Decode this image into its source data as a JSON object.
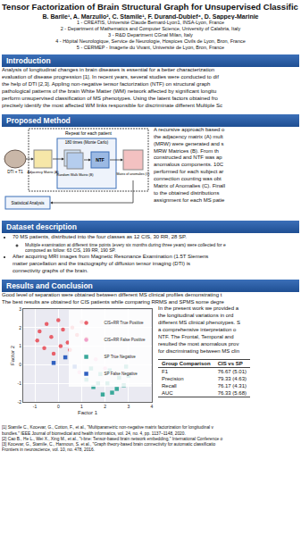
{
  "header": {
    "title": "Tensor Factorization of Brain Structural Graph for Unsupervised Classific",
    "authors": "B. Barile¹, A. Marzullo², C. Stamile¹, F. Durand-Dubief⁴, D. Sappey-Marinie",
    "affiliations": [
      "1 - CREATIS, Université Claude Bernard-Lyon1, INSA-Lyon, France",
      "2 - Department of Mathematics and Computer Science, University of Calabria, Italy",
      "3 - R&D Department CGnal Milan, Italy",
      "4 - Hôpital Neurologique, Service de Neurologie, Hospices Civils de Lyon, Bron, France",
      "5 - CERMEP - Imagerie du Vivant, Université de Lyon, Bron, France"
    ]
  },
  "introduction": {
    "title": "Introduction",
    "lines": [
      "Analysis of longitudinal changes in brain diseases is essential for a better characterization",
      "evaluation of disease progression [1]. In recent years, several studies were conducted to dif",
      "the help of DTI [2,3]. Appling non-negative tensor factorization (NTF) on structural graph",
      "pathological patterns of the brain White Matter (WM) network affected by significant longitu",
      "perform unsupervised classification of MS phenotypes. Using the latent factors obtained fro",
      "precisely identify the most affected WM links responsible for discriminate different Multiple Sc"
    ]
  },
  "proposed_method": {
    "title": "Proposed Method",
    "diagram": {
      "repeat": "Repeat for each patient",
      "monte_carlo": "180 times (Monte Carlo)",
      "input": "DTI + T1",
      "adjacency": "Adjacency Matrix (A)",
      "random_walk": "Random Walk Matrix (B)",
      "ntf": "NTF",
      "anomalies": "Matrix of anomalies (C)",
      "statistics": "Statistical Analysis"
    },
    "lines": [
      "A recursive approach based o",
      "the adjacency matrix (A) mult",
      "(MRW) were generated and s",
      "MRW Matrices (B). From th",
      "constructed and NTF was ap",
      "anomalous components. 10C",
      "performed for each subject ar",
      "connection counting was obt",
      "Matrix of Anomalies (C). Finall",
      "to the obtained distributions",
      "assignment for each MS patie"
    ]
  },
  "dataset": {
    "title": "Dataset description",
    "items": [
      {
        "lines": [
          "70 MS patients, distributed into the four classes as 12 CIS, 30 RR, 28 SP."
        ],
        "sub": [
          {
            "lines": [
              "Multiple examination at different time points (every six months during three years) were collected for e",
              "composed as follow: 63 CIS, 199 RR, 190 SP."
            ]
          }
        ]
      },
      {
        "lines": [
          "After acquiring MRI images from Magnetic Resonance Examination (1.5T Siemens",
          "matter parcellation and the tractography of diffusion tensor imaging (DTI) is",
          "connectivity graphs of the brain."
        ]
      }
    ]
  },
  "results": {
    "title": "Results and Conclusion",
    "lines": [
      "Good level of separation were obtained between different MS clinical profiles demonstrating t",
      "The best results are obtained for CIS patients while comparing RRMS and SPMS some degre"
    ],
    "side_lines": [
      "In the present work we provided a",
      "the longitudinal variations in ord",
      "different MS clinical phenotypes. S",
      "a comprehensive interpretation o",
      "NTF. The Frontal, Temporal and",
      "resulted the most anomalous prov",
      "for discriminating between MS clin"
    ],
    "table": {
      "header": [
        "Group Comparison",
        "CIS vs SP"
      ],
      "rows": [
        [
          "F1",
          "76.67 (5.01)"
        ],
        [
          "Precision",
          "79.33 (4.63)"
        ],
        [
          "Recall",
          "76.17 (4.31)"
        ],
        [
          "AUC",
          "76.33 (5.68)"
        ]
      ]
    }
  },
  "references": [
    "[1] Stamile C., Kocevar, G., Cotton, F., et al., \"Multiparametric non-negative matrix factorization for longitudinal v",
    "bundles.\" IEEE Journal of biomedical and health informatics, vol. 24, no. 4, pp. 1137–1148, 2020.",
    "[2] Cao B., He L., Wei X., Xing M., et al., \"t-bne: Tensor-based brain network embedding,\" International Conference o",
    "[3] Kocevar, G., Stamile, C., Hannoun, S. et al., \"Graph theory-based brain connectivity for automatic classificatio",
    "Frontiers in neuroscience, vol. 10, no. 478, 2016."
  ],
  "chart_data": {
    "type": "scatter",
    "x_label": "Factor 1",
    "y_label": "Factor 2",
    "xlim": [
      -1.5,
      4
    ],
    "xticks": [
      -1,
      0,
      1,
      2,
      3,
      4
    ],
    "ylim": [
      -2,
      3
    ],
    "yticks": [
      -2,
      -1,
      0,
      1,
      2,
      3
    ],
    "grid": true,
    "legend": "upper right",
    "series": [
      {
        "name": "CIS+RR True Positive",
        "color": "#e8606a",
        "marker": "circle",
        "x": [
          -0.8,
          -0.5,
          -0.3,
          0,
          0.2,
          0.4,
          0.6,
          -0.6,
          0.1,
          0.8,
          1.0,
          -0.2,
          0.5,
          1.2,
          -0.9
        ],
        "y": [
          1.8,
          2.2,
          1.5,
          2.4,
          1.9,
          1.2,
          2.0,
          0.9,
          1.0,
          1.6,
          2.3,
          0.6,
          0.8,
          1.4,
          1.3
        ]
      },
      {
        "name": "CIS+RR False Positive",
        "color": "#f0a0c8",
        "marker": "circle",
        "x": [
          1.6,
          2.0,
          0.9,
          2.4
        ],
        "y": [
          0.3,
          -0.2,
          -0.4,
          0.5
        ]
      },
      {
        "name": "SP True Negative",
        "color": "#3aa89a",
        "marker": "square",
        "x": [
          1.2,
          1.5,
          1.8,
          2.1,
          2.3,
          2.6,
          2.8,
          1.4,
          1.9,
          2.2,
          2.5,
          3.0,
          1.7,
          2.9
        ],
        "y": [
          -0.8,
          -1.2,
          -0.5,
          -1.0,
          -1.5,
          -0.7,
          -1.1,
          -0.2,
          -1.6,
          -0.3,
          -1.3,
          -0.6,
          -1.0,
          -0.1
        ]
      },
      {
        "name": "SP False Negative",
        "color": "#3060c0",
        "marker": "square",
        "x": [
          0.3,
          -0.2,
          0.7
        ],
        "y": [
          0.4,
          0.1,
          -0.1
        ]
      }
    ]
  }
}
